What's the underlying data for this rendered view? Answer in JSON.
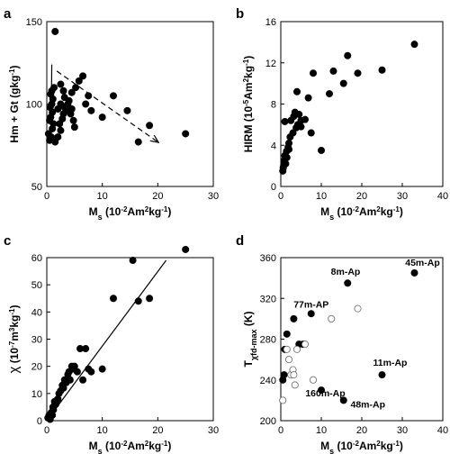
{
  "figure": {
    "panels": [
      {
        "label": "a",
        "xlabel_main": "M",
        "xlabel_sub": "s",
        "xlabel_rest": " (10",
        "xlabel_exp1": "-2",
        "xlabel_mid": "Am",
        "xlabel_exp2": "2",
        "xlabel_end": "kg",
        "xlabel_exp3": "-1",
        "xlabel_close": ")",
        "ylabel": "Hm + Gt (gkg",
        "ylabel_exp": "-1",
        "ylabel_close": ")"
      },
      {
        "label": "b",
        "ylabel": "HIRM (10",
        "ylabel_exp1": "-5",
        "ylabel_mid": "Am",
        "ylabel_exp2": "2",
        "ylabel_end": "kg",
        "ylabel_exp3": "-1",
        "ylabel_close": ")"
      },
      {
        "label": "c",
        "ylabel_chi": "χ",
        "ylabel": " (10",
        "ylabel_exp1": "-7",
        "ylabel_mid": "m",
        "ylabel_exp2": "3",
        "ylabel_end": "kg",
        "ylabel_exp3": "-1",
        "ylabel_close": ")"
      },
      {
        "label": "d",
        "ylabel_T": "T",
        "ylabel_sub": "χfd-max",
        "ylabel_close": " (K)"
      }
    ]
  },
  "chart_data": [
    {
      "type": "scatter",
      "panel": "a",
      "xlim": [
        0,
        30
      ],
      "ylim": [
        50,
        150
      ],
      "xticks": [
        0,
        10,
        20,
        30
      ],
      "yticks": [
        50,
        100,
        150
      ],
      "xlabel": "Ms (10-2Am2kg-1)",
      "ylabel": "Hm + Gt (gkg-1)",
      "points": [
        [
          1.5,
          144
        ],
        [
          0.3,
          82
        ],
        [
          0.5,
          78
        ],
        [
          0.8,
          80
        ],
        [
          1,
          85
        ],
        [
          1.2,
          88
        ],
        [
          0.5,
          90
        ],
        [
          0.7,
          92
        ],
        [
          1,
          95
        ],
        [
          0.6,
          98
        ],
        [
          0.9,
          100
        ],
        [
          1.1,
          103
        ],
        [
          0.7,
          106
        ],
        [
          0.9,
          108
        ],
        [
          1.3,
          110
        ],
        [
          1.5,
          77
        ],
        [
          2,
          80
        ],
        [
          2.5,
          84
        ],
        [
          2.3,
          88
        ],
        [
          2.8,
          91
        ],
        [
          3,
          94
        ],
        [
          2,
          97
        ],
        [
          2.5,
          100
        ],
        [
          3.2,
          98
        ],
        [
          3.5,
          96
        ],
        [
          3.8,
          100
        ],
        [
          4,
          102
        ],
        [
          3.2,
          104
        ],
        [
          4.3,
          94
        ],
        [
          4.5,
          97
        ],
        [
          4.8,
          90
        ],
        [
          5,
          86
        ],
        [
          3,
          108
        ],
        [
          2.5,
          112
        ],
        [
          4.5,
          107
        ],
        [
          5.2,
          110
        ],
        [
          5.8,
          114
        ],
        [
          6.5,
          117
        ],
        [
          7,
          100
        ],
        [
          7.5,
          105
        ],
        [
          8,
          96
        ],
        [
          10,
          92
        ],
        [
          12,
          105
        ],
        [
          14.5,
          96
        ],
        [
          16.5,
          77
        ],
        [
          18.5,
          87
        ],
        [
          25,
          82
        ]
      ],
      "arrow": {
        "from": [
          1.8,
          120
        ],
        "to": [
          20,
          77
        ],
        "style": "dashed"
      },
      "vline_segment": {
        "from": [
          0.8,
          92
        ],
        "to": [
          0.9,
          124
        ]
      }
    },
    {
      "type": "scatter",
      "panel": "b",
      "xlim": [
        0,
        40
      ],
      "ylim": [
        0,
        16
      ],
      "xticks": [
        0,
        10,
        20,
        30,
        40
      ],
      "yticks": [
        0,
        4,
        8,
        12,
        16
      ],
      "xlabel": "Ms (10-2Am2kg-1)",
      "ylabel": "HIRM (10-5Am2kg-1)",
      "points": [
        [
          0.5,
          1.5
        ],
        [
          0.7,
          2
        ],
        [
          0.8,
          2.5
        ],
        [
          1,
          3
        ],
        [
          0.6,
          1.8
        ],
        [
          1.2,
          2.2
        ],
        [
          1.4,
          3.4
        ],
        [
          1.5,
          2.8
        ],
        [
          2,
          3.6
        ],
        [
          2,
          4.2
        ],
        [
          2.3,
          4.8
        ],
        [
          1.8,
          3.8
        ],
        [
          1,
          6.3
        ],
        [
          2.5,
          6.4
        ],
        [
          3,
          5.2
        ],
        [
          3.2,
          6.8
        ],
        [
          3.5,
          7.2
        ],
        [
          3.8,
          5.7
        ],
        [
          4,
          9.2
        ],
        [
          4.2,
          6
        ],
        [
          4.5,
          7
        ],
        [
          5,
          6.4
        ],
        [
          5,
          5.8
        ],
        [
          6,
          6.5
        ],
        [
          6.8,
          8.6
        ],
        [
          7.5,
          5.2
        ],
        [
          8,
          11
        ],
        [
          10,
          3.5
        ],
        [
          12,
          9
        ],
        [
          13,
          11.2
        ],
        [
          15.5,
          10
        ],
        [
          16.5,
          12.7
        ],
        [
          19,
          11
        ],
        [
          25,
          11.3
        ],
        [
          33,
          13.8
        ]
      ]
    },
    {
      "type": "scatter",
      "panel": "c",
      "xlim": [
        0,
        30
      ],
      "ylim": [
        0,
        60
      ],
      "xticks": [
        0,
        10,
        20,
        30
      ],
      "yticks": [
        0,
        10,
        20,
        30,
        40,
        50,
        60
      ],
      "xlabel": "Ms (10-2Am2kg-1)",
      "ylabel": "χ (10-7m3kg-1)",
      "points": [
        [
          0.2,
          1
        ],
        [
          0.4,
          2
        ],
        [
          0.6,
          0.5
        ],
        [
          0.8,
          3
        ],
        [
          1,
          2
        ],
        [
          1.1,
          5
        ],
        [
          1.2,
          4
        ],
        [
          1.4,
          7
        ],
        [
          1.6,
          6
        ],
        [
          1.8,
          7.5
        ],
        [
          2,
          8
        ],
        [
          2.2,
          10
        ],
        [
          2.5,
          11
        ],
        [
          2.8,
          13
        ],
        [
          3,
          12
        ],
        [
          3.2,
          15
        ],
        [
          3.5,
          14
        ],
        [
          3.8,
          17
        ],
        [
          4,
          18
        ],
        [
          4.2,
          15
        ],
        [
          4.5,
          20
        ],
        [
          4.8,
          19
        ],
        [
          5,
          20
        ],
        [
          5.5,
          18
        ],
        [
          6,
          26.5
        ],
        [
          6.5,
          15
        ],
        [
          7,
          26.5
        ],
        [
          7.5,
          19
        ],
        [
          8,
          18
        ],
        [
          10,
          19
        ],
        [
          12,
          45
        ],
        [
          15.5,
          59
        ],
        [
          16.5,
          44
        ],
        [
          18.5,
          45
        ],
        [
          25,
          63
        ]
      ],
      "fit_line": {
        "from": [
          0,
          0
        ],
        "to": [
          21.5,
          59
        ]
      }
    },
    {
      "type": "scatter",
      "panel": "d",
      "xlim": [
        0,
        40
      ],
      "ylim": [
        200,
        360
      ],
      "xticks": [
        0,
        10,
        20,
        30,
        40
      ],
      "yticks": [
        200,
        240,
        280,
        320,
        360
      ],
      "xlabel": "Ms (10-2Am2kg-1)",
      "ylabel": "Tχfd-max (K)",
      "filled": [
        [
          0.5,
          240
        ],
        [
          0.8,
          245
        ],
        [
          1,
          270
        ],
        [
          1.5,
          285
        ],
        [
          3.2,
          300
        ],
        [
          4.5,
          275
        ],
        [
          5.5,
          275
        ],
        [
          7.5,
          305
        ],
        [
          10,
          230
        ],
        [
          15.5,
          220
        ],
        [
          16.5,
          335
        ],
        [
          25,
          245
        ],
        [
          33,
          345
        ]
      ],
      "open": [
        [
          0.5,
          220
        ],
        [
          1.5,
          270
        ],
        [
          2,
          260
        ],
        [
          2.5,
          245
        ],
        [
          3,
          250
        ],
        [
          3.2,
          245
        ],
        [
          3.5,
          235
        ],
        [
          4,
          270
        ],
        [
          6,
          275
        ],
        [
          8,
          240
        ],
        [
          12.5,
          300
        ],
        [
          19,
          310
        ]
      ],
      "annotations": [
        {
          "text": "45m-Ap",
          "x": 35,
          "y": 352
        },
        {
          "text": "8m-Ap",
          "x": 16,
          "y": 343
        },
        {
          "text": "77m-AP",
          "x": 7.5,
          "y": 311
        },
        {
          "text": "11m-Ap",
          "x": 27,
          "y": 254
        },
        {
          "text": "160m-Ap",
          "x": 11,
          "y": 224
        },
        {
          "text": "48m-Ap",
          "x": 21.5,
          "y": 213
        }
      ]
    }
  ]
}
